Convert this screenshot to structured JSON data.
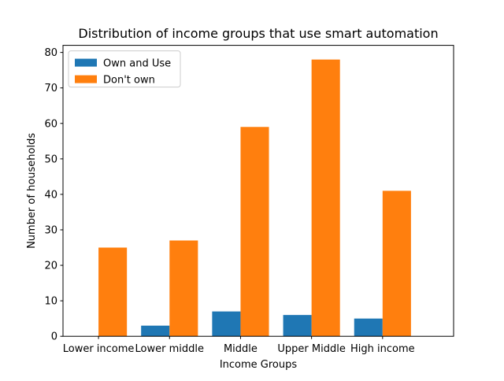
{
  "chart_data": {
    "type": "bar",
    "title": "Distribution of income groups that use smart automation",
    "xlabel": "Income Groups",
    "ylabel": "Number of households",
    "categories": [
      "Lower income",
      "Lower middle",
      "Middle",
      "Upper Middle",
      "High income"
    ],
    "series": [
      {
        "name": "Own and Use",
        "color": "#1f77b4",
        "values": [
          0,
          3,
          7,
          6,
          5
        ]
      },
      {
        "name": "Don't own",
        "color": "#ff7f0e",
        "values": [
          25,
          27,
          59,
          78,
          41
        ]
      }
    ],
    "ylim": [
      0,
      82
    ],
    "yticks": [
      0,
      10,
      20,
      30,
      40,
      50,
      60,
      70,
      80
    ],
    "grid": false,
    "legend_position": "upper left"
  }
}
